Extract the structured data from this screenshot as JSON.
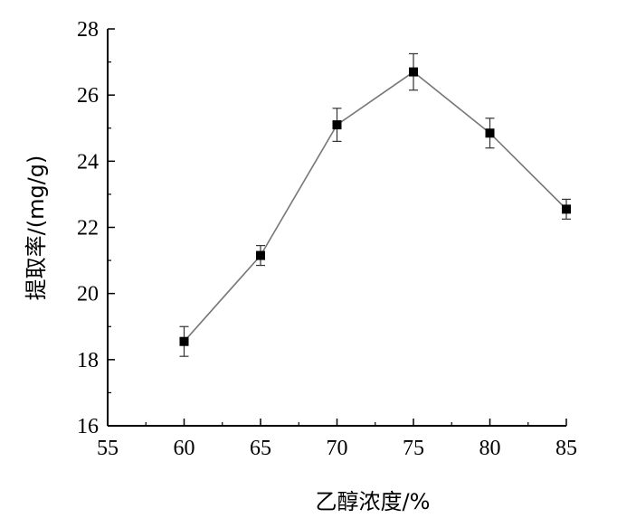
{
  "chart_data": {
    "type": "line",
    "title": "",
    "xlabel": "乙醇浓度/%",
    "ylabel": "提取率/(mg/g)",
    "xlim": [
      55,
      85
    ],
    "ylim": [
      16,
      28
    ],
    "xticks": [
      55,
      60,
      65,
      70,
      75,
      80,
      85
    ],
    "yticks": [
      16,
      18,
      20,
      22,
      24,
      26,
      28
    ],
    "grid": false,
    "legend": "none",
    "series": [
      {
        "x": [
          60,
          65,
          70,
          75,
          80,
          85
        ],
        "y": [
          18.55,
          21.15,
          25.1,
          26.7,
          24.85,
          22.55
        ],
        "error": [
          0.45,
          0.3,
          0.5,
          0.55,
          0.45,
          0.3
        ],
        "marker": "square",
        "color": "#000000",
        "line_color": "#777777"
      }
    ]
  }
}
